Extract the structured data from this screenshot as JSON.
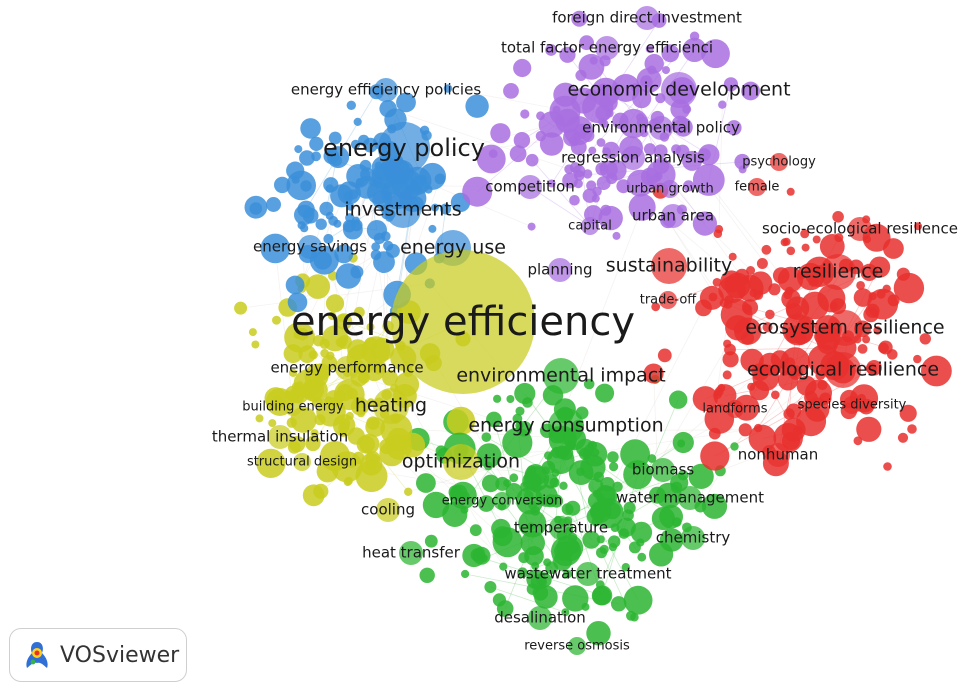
{
  "app": {
    "name": "VOSviewer"
  },
  "colors": {
    "cluster_red": "#e8302e",
    "cluster_green": "#2bb531",
    "cluster_blue": "#3b8fd9",
    "cluster_yellow": "#c9cc1e",
    "cluster_purple": "#a86ee0",
    "edge_default": "#d8d0c8"
  },
  "clusters": [
    "red",
    "green",
    "blue",
    "yellow",
    "purple"
  ],
  "labels": [
    {
      "text": "energy efficiency",
      "cluster": "yellow",
      "size": "xl"
    },
    {
      "text": "energy policy",
      "cluster": "blue",
      "size": "l"
    },
    {
      "text": "investments",
      "cluster": "blue",
      "size": "m"
    },
    {
      "text": "energy use",
      "cluster": "blue",
      "size": "m"
    },
    {
      "text": "energy efficiency policies",
      "cluster": "blue",
      "size": "s"
    },
    {
      "text": "energy savings",
      "cluster": "blue",
      "size": "s"
    },
    {
      "text": "foreign direct investment",
      "cluster": "purple",
      "size": "s"
    },
    {
      "text": "total factor energy efficienci",
      "cluster": "purple",
      "size": "s"
    },
    {
      "text": "economic development",
      "cluster": "purple",
      "size": "m"
    },
    {
      "text": "environmental policy",
      "cluster": "purple",
      "size": "s"
    },
    {
      "text": "regression analysis",
      "cluster": "purple",
      "size": "s"
    },
    {
      "text": "competition",
      "cluster": "purple",
      "size": "s"
    },
    {
      "text": "urban growth",
      "cluster": "purple",
      "size": "xs"
    },
    {
      "text": "urban area",
      "cluster": "purple",
      "size": "s"
    },
    {
      "text": "capital",
      "cluster": "purple",
      "size": "xs"
    },
    {
      "text": "planning",
      "cluster": "purple",
      "size": "s"
    },
    {
      "text": "sustainability",
      "cluster": "red",
      "size": "m"
    },
    {
      "text": "trade-off",
      "cluster": "red",
      "size": "xs"
    },
    {
      "text": "psychology",
      "cluster": "red",
      "size": "xs"
    },
    {
      "text": "female",
      "cluster": "red",
      "size": "xs"
    },
    {
      "text": "socio-ecological resilience",
      "cluster": "red",
      "size": "s"
    },
    {
      "text": "resilience",
      "cluster": "red",
      "size": "m"
    },
    {
      "text": "ecosystem resilience",
      "cluster": "red",
      "size": "m"
    },
    {
      "text": "ecological resilience",
      "cluster": "red",
      "size": "m"
    },
    {
      "text": "landforms",
      "cluster": "red",
      "size": "xs"
    },
    {
      "text": "species diversity",
      "cluster": "red",
      "size": "xs"
    },
    {
      "text": "nonhuman",
      "cluster": "red",
      "size": "s"
    },
    {
      "text": "energy performance",
      "cluster": "yellow",
      "size": "s"
    },
    {
      "text": "building energy",
      "cluster": "yellow",
      "size": "xs"
    },
    {
      "text": "heating",
      "cluster": "yellow",
      "size": "m"
    },
    {
      "text": "thermal insulation",
      "cluster": "yellow",
      "size": "s"
    },
    {
      "text": "structural design",
      "cluster": "yellow",
      "size": "xs"
    },
    {
      "text": "optimization",
      "cluster": "yellow",
      "size": "m"
    },
    {
      "text": "cooling",
      "cluster": "yellow",
      "size": "s"
    },
    {
      "text": "environmental impact",
      "cluster": "green",
      "size": "m"
    },
    {
      "text": "energy consumption",
      "cluster": "green",
      "size": "m"
    },
    {
      "text": "biomass",
      "cluster": "green",
      "size": "s"
    },
    {
      "text": "energy conversion",
      "cluster": "green",
      "size": "xs"
    },
    {
      "text": "water management",
      "cluster": "green",
      "size": "s"
    },
    {
      "text": "temperature",
      "cluster": "green",
      "size": "s"
    },
    {
      "text": "chemistry",
      "cluster": "green",
      "size": "s"
    },
    {
      "text": "heat transfer",
      "cluster": "green",
      "size": "s"
    },
    {
      "text": "wastewater treatment",
      "cluster": "green",
      "size": "s"
    },
    {
      "text": "desalination",
      "cluster": "green",
      "size": "s"
    },
    {
      "text": "reverse osmosis",
      "cluster": "green",
      "size": "xs"
    }
  ]
}
